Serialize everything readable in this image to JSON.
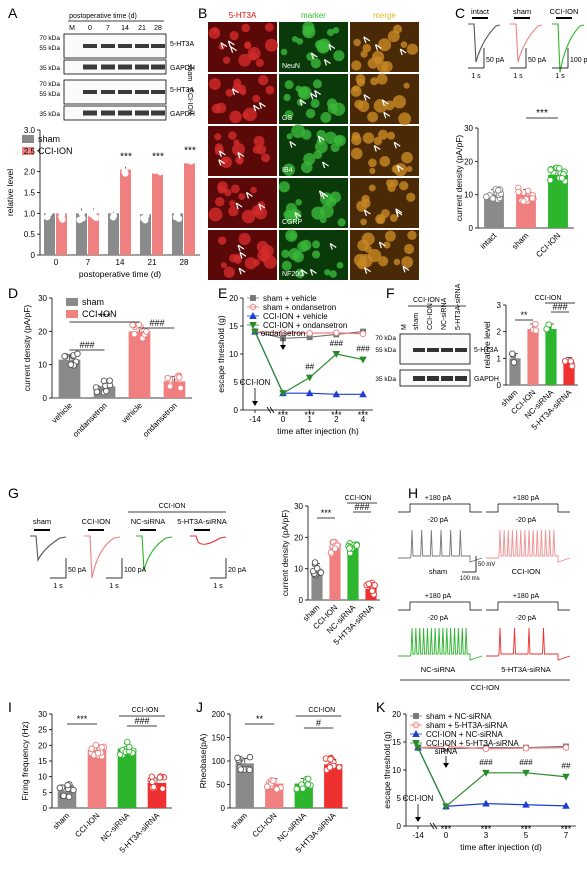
{
  "panels": {
    "A": {
      "letter": "A",
      "blot_header": "postoperative time (d)",
      "blot_lanes": [
        "M",
        "0",
        "7",
        "14",
        "21",
        "28"
      ],
      "blot_markers": [
        "70 kDa",
        "55 kDa",
        "35 kDa",
        "70 kDa",
        "55 kDa",
        "35 kDa"
      ],
      "blot_bands": [
        "5-HT3A",
        "GAPDH",
        "5-HT3A",
        "GAPDH"
      ],
      "blot_groups": [
        "sham",
        "CCI-ION"
      ],
      "legend": [
        "sham",
        "CCI-ION"
      ],
      "stars": [
        "***",
        "***",
        "***"
      ]
    },
    "B": {
      "letter": "B",
      "col_titles": [
        "5-HT3A",
        "marker",
        "merge"
      ],
      "row_markers": [
        "NeuN",
        "GS",
        "IB4",
        "CGRP",
        "NF200"
      ]
    },
    "C": {
      "letter": "C",
      "trace_labels": [
        "intact",
        "sham",
        "CCI-ION"
      ],
      "scales": [
        "50 pA",
        "1 s",
        "50 pA",
        "1 s",
        "100 pA",
        "1 s"
      ],
      "stars": "***"
    },
    "D": {
      "letter": "D",
      "legend": [
        "sham",
        "CCI-ION"
      ],
      "sig": [
        "***",
        "###",
        "###"
      ]
    },
    "E": {
      "letter": "E",
      "legend": [
        "sham + vehicle",
        "sham + ondansetron",
        "CCI-ION + vehicle",
        "CCI-ION + ondansetron"
      ],
      "annot": [
        "ondansetron",
        "CCI-ION"
      ],
      "sig": [
        "***",
        "***",
        "***",
        "***",
        "##",
        "###",
        "###"
      ]
    },
    "F": {
      "letter": "F",
      "blot_lanes": [
        "M",
        "sham",
        "CCI-ION",
        "NC-siRNA",
        "5-HT3A-siRNA"
      ],
      "blot_group": "CCI-ION",
      "blot_markers": [
        "70 kDa",
        "55 kDa",
        "35 kDa"
      ],
      "blot_bands": [
        "5-HT3A",
        "GAPDH"
      ],
      "group": "CCI-ION",
      "sig": [
        "**",
        "###"
      ]
    },
    "G": {
      "letter": "G",
      "trace_labels": [
        "sham",
        "CCI-ION",
        "NC-siRNA",
        "5-HT3A-siRNA"
      ],
      "group": "CCI-ION",
      "scales": [
        "50 pA",
        "1 s",
        "100 pA",
        "1 s",
        "20 pA",
        "1 s"
      ],
      "group2": "CCI-ION",
      "sig": [
        "***",
        "###"
      ]
    },
    "H": {
      "letter": "H",
      "steps": [
        "+180 pA",
        "-20 pA",
        "+180 pA",
        "-20 pA",
        "+180 pA",
        "-20 pA",
        "+180 pA",
        "-20 pA"
      ],
      "labels": [
        "sham",
        "CCI-ION",
        "NC-siRNA",
        "5-HT3A-siRNA"
      ],
      "scales": [
        "50 mV",
        "100 ms"
      ],
      "group": "CCI-ION"
    },
    "I": {
      "letter": "I",
      "group": "CCI-ION",
      "sig": [
        "***",
        "###"
      ]
    },
    "J": {
      "letter": "J",
      "group": "CCI-ION",
      "sig": [
        "**",
        "#"
      ]
    },
    "K": {
      "letter": "K",
      "legend": [
        "sham + NC-siRNA",
        "sham + 5-HT3A-siRNA",
        "CCI-ION + NC-siRNA",
        "CCI-ION + 5-HT3A-siRNA"
      ],
      "annot": [
        "siRNA",
        "CCI-ION"
      ],
      "sig": [
        "***",
        "***",
        "***",
        "***",
        "###",
        "###",
        "##"
      ]
    }
  },
  "colors": {
    "sham": "#8a8a8a",
    "cci": "#f08080",
    "nc": "#2db52d",
    "si": "#ee3030",
    "blue": "#1c3fd1",
    "green": "#2a8a2a"
  },
  "chart_data": [
    {
      "id": "A",
      "type": "bar",
      "categories": [
        "0",
        "7",
        "14",
        "21",
        "28"
      ],
      "series": [
        {
          "name": "sham",
          "values": [
            1.0,
            1.0,
            1.0,
            0.98,
            1.0
          ]
        },
        {
          "name": "CCI-ION",
          "values": [
            1.0,
            1.0,
            2.05,
            2.05,
            2.2
          ]
        }
      ],
      "xlabel": "postoperative time (d)",
      "ylabel": "relative level",
      "ylim": [
        0,
        3.0
      ],
      "yticks": [
        0,
        0.5,
        1.0,
        1.5,
        2.0,
        2.5,
        3.0
      ],
      "ytick_labels": [
        "0",
        "0.5",
        "1.0",
        "1.5",
        "2.0",
        "2.5",
        "3.0"
      ]
    },
    {
      "id": "C",
      "type": "bar",
      "categories": [
        "intact",
        "sham",
        "CCI-ION"
      ],
      "values": [
        10,
        10,
        16
      ],
      "ylabel": "current density (pA/pF)",
      "ylim": [
        0,
        30
      ],
      "yticks": [
        0,
        10,
        20,
        30
      ],
      "ytick_labels": [
        "0",
        "10",
        "20",
        "30"
      ]
    },
    {
      "id": "D",
      "type": "bar",
      "categories": [
        "vehicle",
        "ondansetron",
        "vehicle",
        "ondansetron"
      ],
      "values": [
        11.5,
        3.5,
        20,
        5
      ],
      "ylabel": "current density (pA/pF)",
      "ylim": [
        0,
        30
      ],
      "yticks": [
        0,
        10,
        20,
        30
      ],
      "ytick_labels": [
        "0",
        "10",
        "20",
        "30"
      ]
    },
    {
      "id": "E",
      "type": "line",
      "x_labels": [
        "-14",
        "0",
        "1",
        "2",
        "4"
      ],
      "series": [
        {
          "name": "sham + vehicle",
          "values": [
            14,
            12.8,
            13,
            13.5,
            14
          ]
        },
        {
          "name": "sham + ondansetron",
          "values": [
            14,
            13.8,
            13.7,
            13.8,
            13.6
          ]
        },
        {
          "name": "CCI-ION + vehicle",
          "values": [
            14,
            3,
            3,
            2.8,
            2.8
          ]
        },
        {
          "name": "CCI-ION + ondansetron",
          "values": [
            14,
            3,
            5.8,
            10,
            9
          ]
        }
      ],
      "xlabel": "time after injection (h)",
      "ylabel": "escape threshold (g)",
      "ylim": [
        0,
        20
      ],
      "yticks": [
        0,
        5,
        10,
        15,
        20
      ],
      "ytick_labels": [
        "0",
        "5",
        "10",
        "15",
        "20"
      ]
    },
    {
      "id": "F",
      "type": "bar",
      "categories": [
        "sham",
        "CCI-ION",
        "NC-siRNA",
        "5-HT3A-siRNA"
      ],
      "values": [
        1.0,
        2.1,
        2.1,
        0.85
      ],
      "ylabel": "relative level",
      "ylim": [
        0,
        3
      ],
      "yticks": [
        0,
        1,
        2,
        3
      ],
      "ytick_labels": [
        "0",
        "1",
        "2",
        "3"
      ]
    },
    {
      "id": "G",
      "type": "bar",
      "categories": [
        "sham",
        "CCI-ION",
        "NC-siRNA",
        "5-HT3A-siRNA"
      ],
      "values": [
        10,
        16.5,
        16.5,
        3.5
      ],
      "ylabel": "current density (pA/pF)",
      "ylim": [
        0,
        30
      ],
      "yticks": [
        0,
        10,
        20,
        30
      ],
      "ytick_labels": [
        "0",
        "10",
        "20",
        "30"
      ]
    },
    {
      "id": "I",
      "type": "bar",
      "categories": [
        "sham",
        "CCI-ION",
        "NC-siRNA",
        "5-HT3A-siRNA"
      ],
      "values": [
        5.5,
        18.5,
        19,
        8
      ],
      "ylabel": "Firing frequency (Hz)",
      "ylim": [
        0,
        30
      ],
      "yticks": [
        0,
        5,
        10,
        15,
        20,
        25,
        30
      ],
      "ytick_labels": [
        "0",
        "5",
        "10",
        "15",
        "20",
        "25",
        "30"
      ]
    },
    {
      "id": "J",
      "type": "bar",
      "categories": [
        "sham",
        "CCI-ION",
        "NC-siRNA",
        "5-HT3A-siRNA"
      ],
      "values": [
        95,
        52,
        52,
        93
      ],
      "ylabel": "Rheobase(pA)",
      "ylim": [
        0,
        200
      ],
      "yticks": [
        0,
        50,
        100,
        150,
        200
      ],
      "ytick_labels": [
        "0",
        "50",
        "100",
        "150",
        "200"
      ]
    },
    {
      "id": "K",
      "type": "line",
      "x_labels": [
        "-14",
        "0",
        "3",
        "5",
        "7"
      ],
      "series": [
        {
          "name": "sham + NC-siRNA",
          "values": [
            14,
            13.8,
            14,
            14,
            14.2
          ]
        },
        {
          "name": "sham + 5-HT3A-siRNA",
          "values": [
            14,
            14.2,
            13.8,
            13.9,
            14
          ]
        },
        {
          "name": "CCI-ION + NC-siRNA",
          "values": [
            14,
            3.5,
            4,
            3.8,
            3.6
          ]
        },
        {
          "name": "CCI-ION + 5-HT3A-siRNA",
          "values": [
            14,
            3.5,
            9.5,
            9.5,
            8.8
          ]
        }
      ],
      "xlabel": "time after injection (d)",
      "ylabel": "escape threshold (g)",
      "ylim": [
        0,
        20
      ],
      "yticks": [
        0,
        5,
        10,
        15,
        20
      ],
      "ytick_labels": [
        "0",
        "5",
        "10",
        "15",
        "20"
      ]
    }
  ]
}
